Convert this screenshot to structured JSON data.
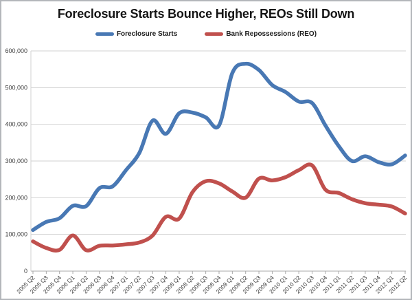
{
  "window": {
    "title": "Foreclosure Starts Bounce Higher, REOs Still Down"
  },
  "chart_data": {
    "type": "line",
    "title": "Foreclosure Starts Bounce Higher, REOs Still Down",
    "smoothed": true,
    "grid": "horizontal",
    "legend_position": "top",
    "xlabel": "",
    "ylabel": "",
    "ylim": [
      0,
      600000
    ],
    "ytick_step": 100000,
    "ytick_labels": [
      "0",
      "100,000",
      "200,000",
      "300,000",
      "400,000",
      "500,000",
      "600,000"
    ],
    "categories": [
      "2005 Q2",
      "2005 Q3",
      "2005 Q4",
      "2006 Q1",
      "2006 Q2",
      "2006 Q3",
      "2006 Q4",
      "2007 Q1",
      "2007 Q2",
      "2007 Q3",
      "2007 Q4",
      "2008 Q1",
      "2008 Q2",
      "2008 Q3",
      "2008 Q4",
      "2009 Q1",
      "2009 Q2",
      "2009 Q3",
      "2009 Q4",
      "2010 Q1",
      "2010 Q2",
      "2010 Q3",
      "2010 Q4",
      "2011 Q1",
      "2011 Q2",
      "2011 Q3",
      "2011 Q4",
      "2012 Q1",
      "2012 Q2"
    ],
    "series": [
      {
        "name": "Foreclosure Starts",
        "color": "#4878b4",
        "values": [
          112000,
          134000,
          144000,
          178000,
          177000,
          226000,
          231000,
          275000,
          322000,
          410000,
          374000,
          430000,
          432000,
          419000,
          397000,
          540000,
          565000,
          548000,
          507000,
          488000,
          462000,
          458000,
          397000,
          341000,
          300000,
          313000,
          297000,
          291000,
          315000
        ]
      },
      {
        "name": "Bank Repossessions (REO)",
        "color": "#c0504d",
        "values": [
          81000,
          63000,
          58000,
          97000,
          57000,
          69000,
          70000,
          73000,
          78000,
          97000,
          148000,
          143000,
          215000,
          245000,
          239000,
          217000,
          200000,
          252000,
          247000,
          256000,
          275000,
          288000,
          222000,
          213000,
          196000,
          185000,
          181000,
          176000,
          157000
        ]
      }
    ]
  },
  "colors": {
    "background": "#ffffff",
    "border": "#b3b6ba",
    "gridline": "#d2d2d2",
    "axis": "#a8a8a8",
    "label": "#3d3d3d",
    "title": "#141414"
  }
}
